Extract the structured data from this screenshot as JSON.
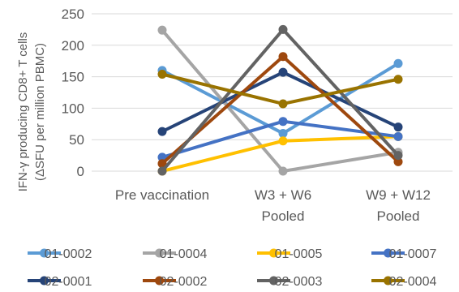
{
  "chart_data": {
    "type": "line",
    "ylabel_lines": [
      "IFN-γ producing CD8+ T cells",
      "(ΔSFU per million PBMC)"
    ],
    "ylim": [
      0,
      250
    ],
    "yticks": [
      0,
      50,
      100,
      150,
      200,
      250
    ],
    "grid": true,
    "legend_position": "bottom",
    "categories": [
      [
        "Pre vaccination"
      ],
      [
        "W3 + W6",
        "Pooled"
      ],
      [
        "W9 + W12",
        "Pooled"
      ]
    ],
    "series": [
      {
        "name": "01-0002",
        "color": "#5B9BD5",
        "values": [
          160,
          60,
          171
        ]
      },
      {
        "name": "01-0004",
        "color": "#A5A5A5",
        "values": [
          224,
          0,
          30
        ]
      },
      {
        "name": "01-0005",
        "color": "#FFC000",
        "values": [
          0,
          48,
          55
        ]
      },
      {
        "name": "01-0007",
        "color": "#4472C4",
        "values": [
          22,
          79,
          55
        ]
      },
      {
        "name": "02-0001",
        "color": "#264478",
        "values": [
          63,
          157,
          70
        ]
      },
      {
        "name": "02-0002",
        "color": "#9E480E",
        "values": [
          12,
          182,
          15
        ]
      },
      {
        "name": "02-0003",
        "color": "#636363",
        "values": [
          0,
          225,
          25
        ]
      },
      {
        "name": "02-0004",
        "color": "#997300",
        "values": [
          154,
          107,
          146
        ]
      }
    ]
  }
}
